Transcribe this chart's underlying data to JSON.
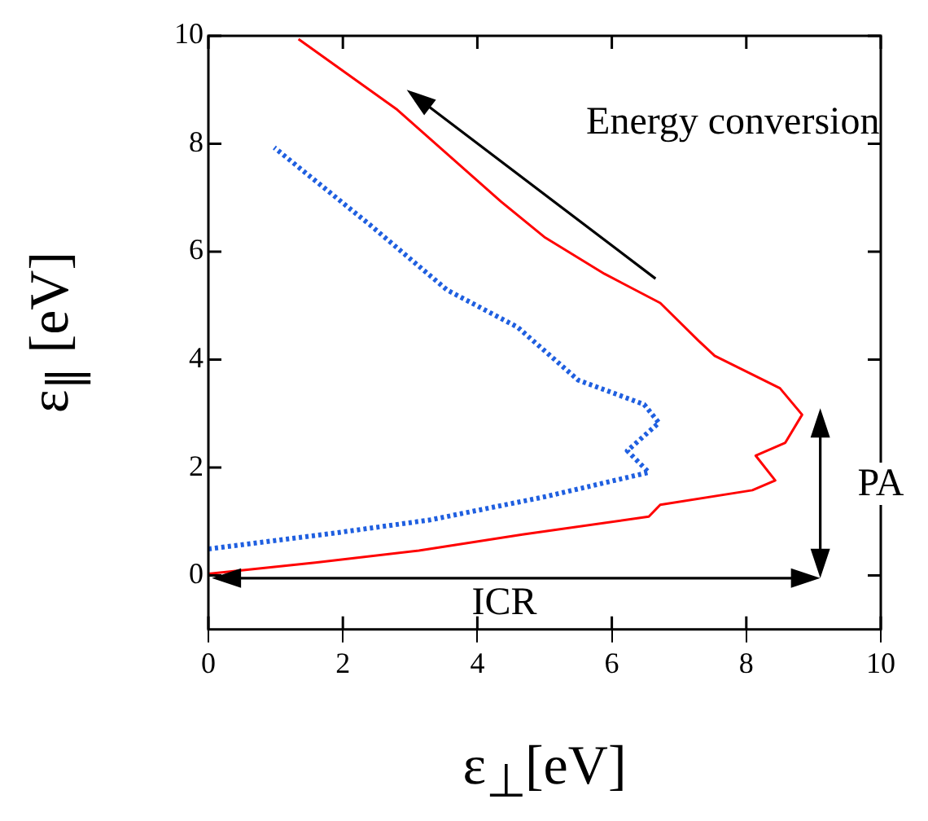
{
  "chart_data": {
    "type": "line",
    "xlabel": "ε$_{⊥}$[eV]",
    "ylabel": "ε$_{∥}$ [eV]",
    "xlim": [
      0,
      10
    ],
    "xticks": [
      0,
      2,
      4,
      6,
      8,
      10
    ],
    "ylim": [
      -1,
      10
    ],
    "yticks": [
      0,
      2,
      4,
      6,
      8,
      10
    ],
    "grid": false,
    "marker": "none",
    "annotations": [
      "Energy conversion",
      "PA",
      "ICR"
    ],
    "series": [
      {
        "color": "#ff0000",
        "line_style": "solid",
        "x": [
          0,
          1.59,
          3.13,
          4.67,
          6.55,
          6.72,
          8.09,
          8.43,
          8.14,
          8.58,
          8.83,
          8.5,
          7.53,
          7.29,
          6.72,
          5.89,
          5.01,
          4.35,
          2.81,
          1.34
        ],
        "values": [
          0.03,
          0.24,
          0.46,
          0.76,
          1.09,
          1.31,
          1.58,
          1.76,
          2.22,
          2.46,
          2.98,
          3.47,
          4.07,
          4.35,
          5.05,
          5.59,
          6.26,
          6.93,
          8.63,
          9.94
        ]
      },
      {
        "color": "#1f5fe0",
        "line_style": "dotted",
        "x": [
          0,
          1.9,
          3.3,
          5.01,
          6.55,
          6.23,
          6.7,
          6.48,
          5.5,
          4.6,
          3.55,
          2.4,
          0.98
        ],
        "values": [
          0.49,
          0.79,
          1.03,
          1.46,
          1.91,
          2.31,
          2.83,
          3.17,
          3.62,
          4.6,
          5.29,
          6.5,
          7.93
        ]
      }
    ]
  }
}
